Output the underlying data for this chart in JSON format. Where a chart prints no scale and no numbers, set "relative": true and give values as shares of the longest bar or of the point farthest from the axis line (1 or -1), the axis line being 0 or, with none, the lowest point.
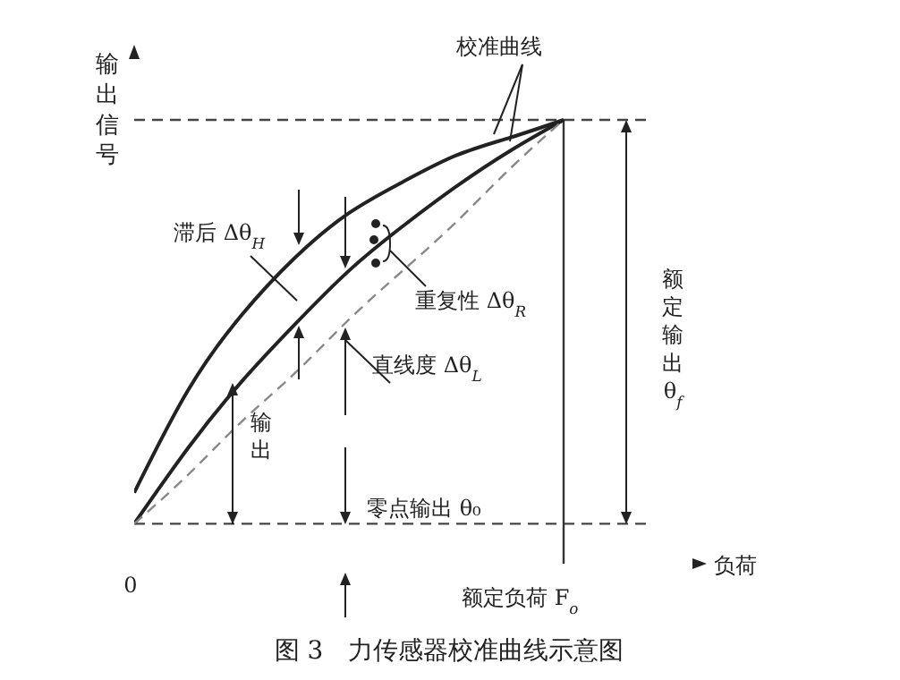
{
  "chart_data": {
    "type": "line",
    "relative": true,
    "title": "图 3　力传感器校准曲线示意图",
    "ylabel": "输出信号",
    "categories": [
      null,
      null,
      null,
      null,
      null,
      null,
      null,
      null,
      null
    ],
    "series": [
      {
        "color": "#222222",
        "values": [
          0.16,
          0.39,
          0.56,
          0.69,
          0.79,
          0.86,
          0.92,
          0.96,
          1
        ]
      },
      {
        "color": "#222222",
        "values": [
          0.09,
          0.26,
          0.41,
          0.54,
          0.66,
          0.76,
          0.85,
          0.93,
          1
        ]
      },
      {
        "color": "#888888",
        "line_style": "dashed",
        "values": [
          0.09,
          0.2,
          0.32,
          0.43,
          0.55,
          0.66,
          0.77,
          0.89,
          1
        ]
      }
    ],
    "ref_lines": [
      {
        "axis": "y",
        "value": 1,
        "line_style": "dashed",
        "color": "#444444"
      },
      {
        "axis": "y",
        "value": 0.09,
        "line_style": "dashed",
        "color": "#444444"
      },
      {
        "axis": "x",
        "value": null,
        "color": "#333333",
        "line_style": "solid"
      }
    ],
    "annotations": [
      "校准曲线",
      "滞后 Δθ$_{H}$",
      "重复性 Δθ$_{R}$",
      "直线度 Δθ$_{L}$",
      "输出",
      "零点输出 θ₀",
      "额定输出θ$_{f}$",
      "额定负荷 F$_{o}$",
      "0",
      "负荷"
    ],
    "marker": "none"
  }
}
